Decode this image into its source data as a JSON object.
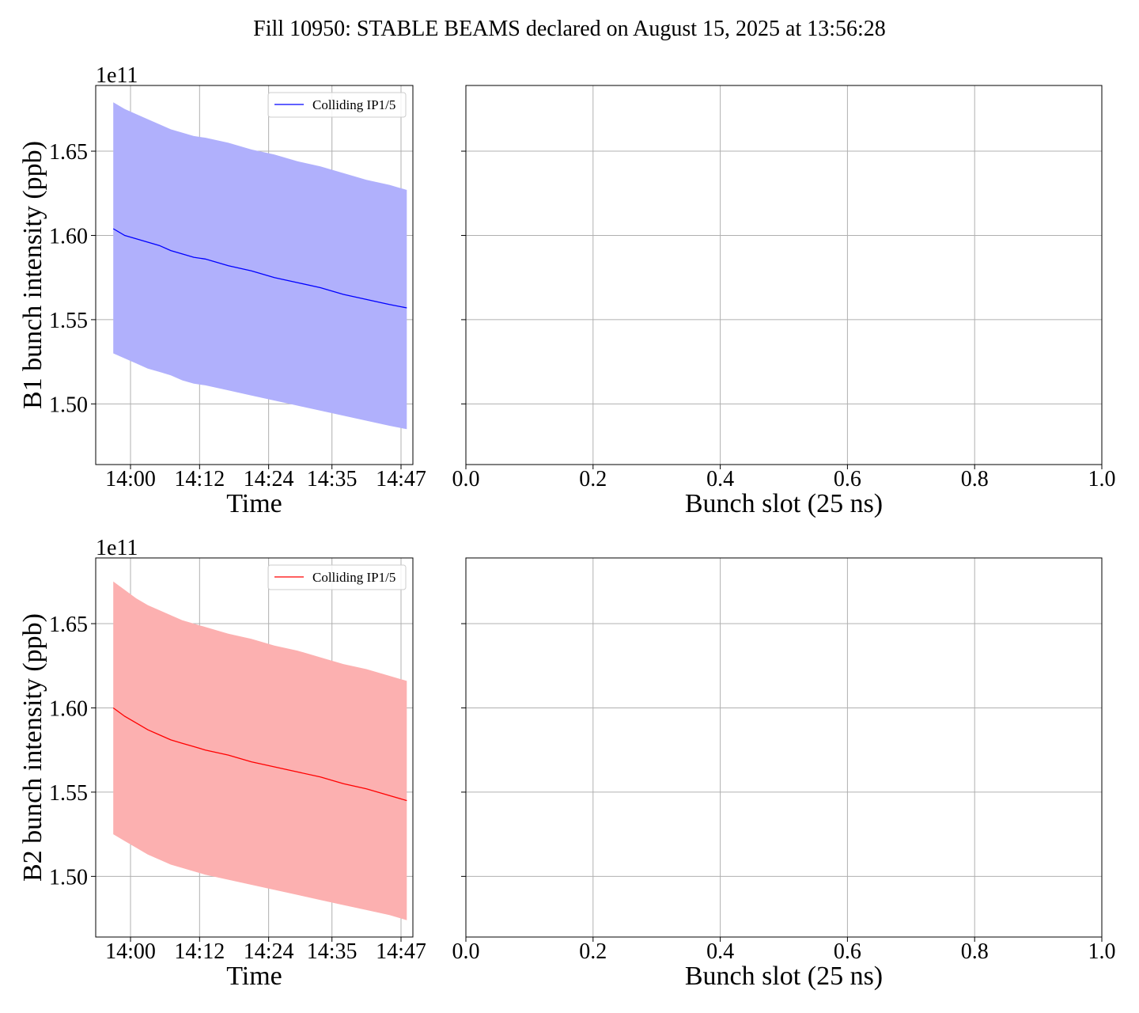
{
  "figure": {
    "suptitle": "Fill 10950: STABLE BEAMS declared on August 15, 2025 at 13:56:28"
  },
  "colors": {
    "b1_line": "#0000ff",
    "b1_fill": "#b0b0fc",
    "b2_line": "#ff0000",
    "b2_fill": "#fcb0b0",
    "grid": "#b0b0b0"
  },
  "chart_data": [
    {
      "type": "line",
      "panel": "B1 time series",
      "xlabel": "Time",
      "ylabel": "B1 bunch intensity (ppb)",
      "y_offset_label": "1e11",
      "x_ticks": [
        "14:00",
        "14:12",
        "14:24",
        "14:35",
        "14:47"
      ],
      "y_ticks": [
        "1.50",
        "1.55",
        "1.60",
        "1.65"
      ],
      "ylim": [
        1.464,
        1.689
      ],
      "grid": true,
      "legend": "top-right",
      "series": [
        {
          "name": "Colliding IP1/5",
          "x": [
            "13:57",
            "13:59",
            "14:01",
            "14:03",
            "14:05",
            "14:07",
            "14:09",
            "14:11",
            "14:13",
            "14:17",
            "14:21",
            "14:25",
            "14:29",
            "14:33",
            "14:37",
            "14:41",
            "14:45",
            "14:48"
          ],
          "values": [
            1.604,
            1.6,
            1.598,
            1.596,
            1.594,
            1.591,
            1.589,
            1.587,
            1.586,
            1.582,
            1.579,
            1.575,
            1.572,
            1.569,
            1.565,
            1.562,
            1.559,
            1.557
          ],
          "upper": [
            1.679,
            1.675,
            1.672,
            1.669,
            1.666,
            1.663,
            1.661,
            1.659,
            1.658,
            1.655,
            1.651,
            1.648,
            1.644,
            1.641,
            1.637,
            1.633,
            1.63,
            1.627
          ],
          "lower": [
            1.53,
            1.527,
            1.524,
            1.521,
            1.519,
            1.517,
            1.514,
            1.512,
            1.511,
            1.508,
            1.505,
            1.502,
            1.499,
            1.496,
            1.493,
            1.49,
            1.487,
            1.485
          ]
        }
      ]
    },
    {
      "type": "line",
      "panel": "B1 bunch slot",
      "xlabel": "Bunch slot (25 ns)",
      "ylabel": "",
      "x_ticks": [
        "0.0",
        "0.2",
        "0.4",
        "0.6",
        "0.8",
        "1.0"
      ],
      "xlim": [
        0,
        1
      ],
      "grid": true,
      "series": []
    },
    {
      "type": "line",
      "panel": "B2 time series",
      "xlabel": "Time",
      "ylabel": "B2 bunch intensity (ppb)",
      "y_offset_label": "1e11",
      "x_ticks": [
        "14:00",
        "14:12",
        "14:24",
        "14:35",
        "14:47"
      ],
      "y_ticks": [
        "1.50",
        "1.55",
        "1.60",
        "1.65"
      ],
      "ylim": [
        1.464,
        1.689
      ],
      "grid": true,
      "legend": "top-right",
      "series": [
        {
          "name": "Colliding IP1/5",
          "x": [
            "13:57",
            "13:59",
            "14:01",
            "14:03",
            "14:05",
            "14:07",
            "14:09",
            "14:11",
            "14:13",
            "14:17",
            "14:21",
            "14:25",
            "14:29",
            "14:33",
            "14:37",
            "14:41",
            "14:45",
            "14:48"
          ],
          "values": [
            1.6,
            1.595,
            1.591,
            1.587,
            1.584,
            1.581,
            1.579,
            1.577,
            1.575,
            1.572,
            1.568,
            1.565,
            1.562,
            1.559,
            1.555,
            1.552,
            1.548,
            1.545
          ],
          "upper": [
            1.675,
            1.67,
            1.665,
            1.661,
            1.658,
            1.655,
            1.652,
            1.65,
            1.648,
            1.644,
            1.641,
            1.637,
            1.634,
            1.63,
            1.626,
            1.623,
            1.619,
            1.616
          ],
          "lower": [
            1.525,
            1.521,
            1.517,
            1.513,
            1.51,
            1.507,
            1.505,
            1.503,
            1.501,
            1.498,
            1.495,
            1.492,
            1.489,
            1.486,
            1.483,
            1.48,
            1.477,
            1.474
          ]
        }
      ]
    },
    {
      "type": "line",
      "panel": "B2 bunch slot",
      "xlabel": "Bunch slot (25 ns)",
      "ylabel": "",
      "x_ticks": [
        "0.0",
        "0.2",
        "0.4",
        "0.6",
        "0.8",
        "1.0"
      ],
      "xlim": [
        0,
        1
      ],
      "grid": true,
      "series": []
    }
  ]
}
